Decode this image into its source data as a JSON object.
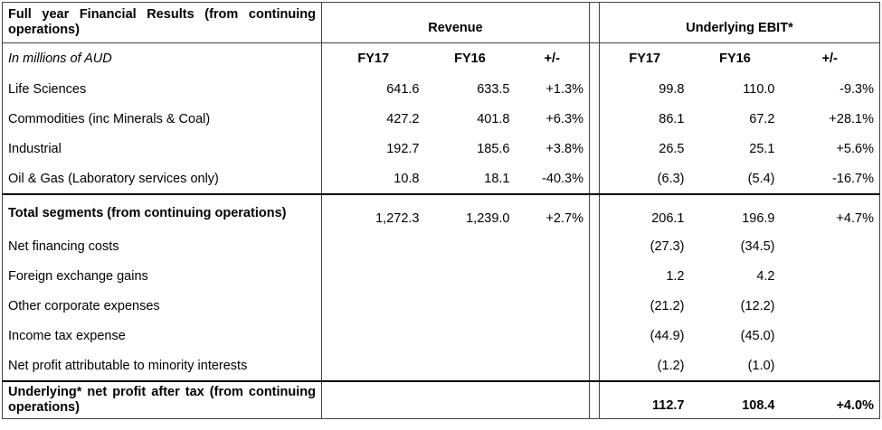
{
  "table": {
    "header": {
      "title": "Full year Financial Results (from continuing operations)",
      "revenue": "Revenue",
      "ebit": "Underlying EBIT*"
    },
    "subheader": {
      "units": "In millions of AUD",
      "rev_fy17": "FY17",
      "rev_fy16": "FY16",
      "rev_change": "+/-",
      "ebit_fy17": "FY17",
      "ebit_fy16": "FY16",
      "ebit_change": "+/-"
    },
    "segments": [
      {
        "label": "Life Sciences",
        "rev_fy17": "641.6",
        "rev_fy16": "633.5",
        "rev_change": "+1.3%",
        "ebit_fy17": "99.8",
        "ebit_fy16": "110.0",
        "ebit_change": "-9.3%"
      },
      {
        "label": "Commodities (inc Minerals & Coal)",
        "rev_fy17": "427.2",
        "rev_fy16": "401.8",
        "rev_change": "+6.3%",
        "ebit_fy17": "86.1",
        "ebit_fy16": "67.2",
        "ebit_change": "+28.1%"
      },
      {
        "label": "Industrial",
        "rev_fy17": "192.7",
        "rev_fy16": "185.6",
        "rev_change": "+3.8%",
        "ebit_fy17": "26.5",
        "ebit_fy16": "25.1",
        "ebit_change": "+5.6%"
      },
      {
        "label": "Oil & Gas (Laboratory services only)",
        "rev_fy17": "10.8",
        "rev_fy16": "18.1",
        "rev_change": "-40.3%",
        "ebit_fy17": "(6.3)",
        "ebit_fy16": "(5.4)",
        "ebit_change": "-16.7%"
      }
    ],
    "total": {
      "label": "Total segments (from continuing operations)",
      "rev_fy17": "1,272.3",
      "rev_fy16": "1,239.0",
      "rev_change": "+2.7%",
      "ebit_fy17": "206.1",
      "ebit_fy16": "196.9",
      "ebit_change": "+4.7%"
    },
    "adjustments": [
      {
        "label": "Net financing costs",
        "ebit_fy17": "(27.3)",
        "ebit_fy16": "(34.5)"
      },
      {
        "label": "Foreign exchange gains",
        "ebit_fy17": "1.2",
        "ebit_fy16": "4.2"
      },
      {
        "label": "Other corporate expenses",
        "ebit_fy17": "(21.2)",
        "ebit_fy16": "(12.2)"
      },
      {
        "label": "Income tax expense",
        "ebit_fy17": "(44.9)",
        "ebit_fy16": "(45.0)"
      },
      {
        "label": "Net profit attributable to minority interests",
        "ebit_fy17": "(1.2)",
        "ebit_fy16": "(1.0)"
      }
    ],
    "net_profit": {
      "label": "Underlying* net profit after tax (from continuing operations)",
      "ebit_fy17": "112.7",
      "ebit_fy16": "108.4",
      "ebit_change": "+4.0%"
    }
  }
}
